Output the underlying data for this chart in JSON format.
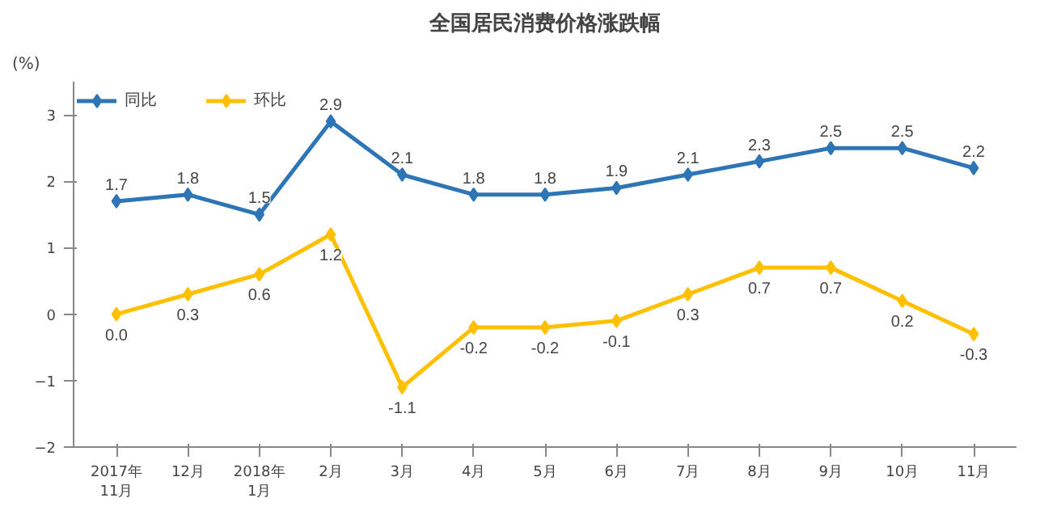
{
  "chart_data": {
    "type": "line",
    "title": "全国居民消费价格涨跌幅",
    "ylabel": "(%)",
    "categories": [
      "2017年\n11月",
      "12月",
      "2018年\n1月",
      "2月",
      "3月",
      "4月",
      "5月",
      "6月",
      "7月",
      "8月",
      "9月",
      "10月",
      "11月"
    ],
    "series": [
      {
        "name": "同比",
        "color": "#2e75b6",
        "values": [
          1.7,
          1.8,
          1.5,
          2.9,
          2.1,
          1.8,
          1.8,
          1.9,
          2.1,
          2.3,
          2.5,
          2.5,
          2.2
        ],
        "value_labels": [
          "1.7",
          "1.8",
          "1.5",
          "2.9",
          "2.1",
          "1.8",
          "1.8",
          "1.9",
          "2.1",
          "2.3",
          "2.5",
          "2.5",
          "2.2"
        ]
      },
      {
        "name": "环比",
        "color": "#ffc000",
        "values": [
          0.0,
          0.3,
          0.6,
          1.2,
          -1.1,
          -0.2,
          -0.2,
          -0.1,
          0.3,
          0.7,
          0.7,
          0.2,
          -0.3
        ],
        "value_labels": [
          "0.0",
          "0.3",
          "0.6",
          "1.2",
          "-1.1",
          "-0.2",
          "-0.2",
          "-0.1",
          "0.3",
          "0.7",
          "0.7",
          "0.2",
          "-0.3"
        ]
      }
    ],
    "ylim": [
      -2,
      3.5
    ],
    "yticks": [
      -2,
      -1,
      0,
      1,
      2,
      3
    ],
    "grid": false,
    "legend": "top left",
    "marker": "diamond",
    "line_style": "solid"
  }
}
